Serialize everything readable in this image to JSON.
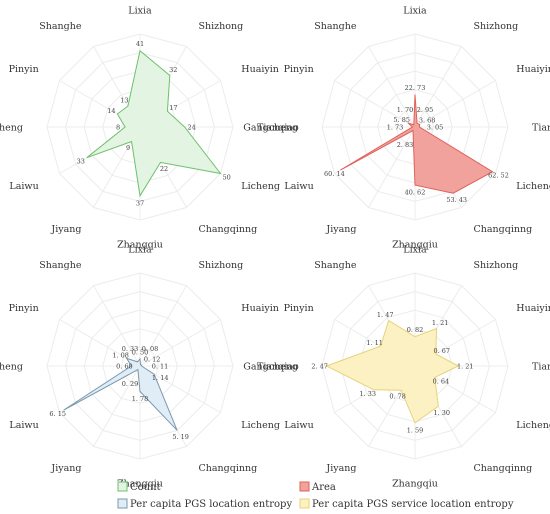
{
  "chart_data": [
    {
      "type": "radar",
      "categories": [
        "Lixia",
        "Shizhong",
        "Huaiyin",
        "Tianqiao",
        "Licheng",
        "Changqinng",
        "Zhangqiu",
        "Jiyang",
        "Laiwu",
        "Gangcheng",
        "Pinyin",
        "Shanghe"
      ],
      "series": [
        {
          "name": "Count",
          "values": [
            41,
            32,
            17,
            24,
            50,
            22,
            37,
            9,
            33,
            8,
            14,
            13
          ],
          "labels": [
            "41",
            "32",
            "17",
            "24",
            "50",
            "22",
            "37",
            "9",
            "33",
            "8",
            "14",
            "13"
          ],
          "color": "#6cc16c",
          "fill": "#e4f4e3"
        }
      ],
      "rmax": 50
    },
    {
      "type": "radar",
      "categories": [
        "Lixia",
        "Shizhong",
        "Huaiyin",
        "Tianqiao",
        "Licheng",
        "Changqinng",
        "Zhangqiu",
        "Jiyang",
        "Laiwu",
        "Gangcheng",
        "Pinyin",
        "Shanghe"
      ],
      "series": [
        {
          "name": "Area",
          "values": [
            22.73,
            2.95,
            3.68,
            3.05,
            62.52,
            53.43,
            40.62,
            2.83,
            60.14,
            1.73,
            5.85,
            1.7
          ],
          "labels": [
            "22. 73",
            "2. 95",
            "3. 68",
            "3. 05",
            "62. 52",
            "53. 43",
            "40. 62",
            "2. 83",
            "60. 14",
            "1. 73",
            "5. 85",
            "1. 70"
          ],
          "color": "#e0605a",
          "fill": "#f2a29c"
        }
      ],
      "rmax": 65
    },
    {
      "type": "radar",
      "categories": [
        "Lixia",
        "Shizhong",
        "Huaiyin",
        "Tianqiao",
        "Licheng",
        "Changqinng",
        "Zhangqiu",
        "Jiyang",
        "Laiwu",
        "Gangcheng",
        "Pinyin",
        "Shanghe"
      ],
      "series": [
        {
          "name": "Per capita PGS location entropy",
          "values": [
            0.5,
            0.08,
            0.12,
            0.11,
            1.14,
            5.19,
            1.78,
            0.29,
            6.15,
            0.6,
            1.08,
            0.33
          ],
          "labels": [
            "0. 50",
            "0. 08",
            "0. 12",
            "0. 11",
            "1. 14",
            "5. 19",
            "1. 78",
            "0. 29",
            "6. 15",
            "0. 60",
            "1. 08",
            "0. 33"
          ],
          "color": "#7a98ae",
          "fill": "#e0edf7"
        }
      ],
      "rmax": 6.5
    },
    {
      "type": "radar",
      "categories": [
        "Lixia",
        "Shizhong",
        "Huaiyin",
        "Tianqiao",
        "Licheng",
        "Changqinng",
        "Zhangqiu",
        "Jiyang",
        "Laiwu",
        "Gangcheng",
        "Pinyin",
        "Shanghe"
      ],
      "series": [
        {
          "name": "Per capita PGS service location entropy",
          "values": [
            0.82,
            1.21,
            0.67,
            1.21,
            0.64,
            1.3,
            1.59,
            0.78,
            1.33,
            2.47,
            1.11,
            1.47
          ],
          "labels": [
            "0. 82",
            "1. 21",
            "0. 67",
            "1. 21",
            "0. 64",
            "1. 30",
            "1. 59",
            "0. 78",
            "1. 33",
            "2. 47",
            "1. 11",
            "1. 47"
          ],
          "color": "#e8d27a",
          "fill": "#fbf1c2"
        }
      ],
      "rmax": 2.6
    }
  ],
  "legend": [
    {
      "label": "Count",
      "color": "#6cc16c",
      "fill": "#e4f4e3"
    },
    {
      "label": "Area",
      "color": "#e0605a",
      "fill": "#f2a29c"
    },
    {
      "label": "Per capita PGS location entropy",
      "color": "#7a98ae",
      "fill": "#e0edf7"
    },
    {
      "label": "Per capita PGS service location entropy",
      "color": "#e8d27a",
      "fill": "#fbf1c2"
    }
  ]
}
